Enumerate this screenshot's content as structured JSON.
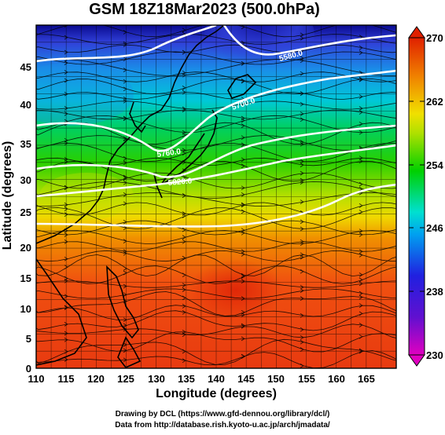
{
  "title": "GSM 18Z18Mar2023 (500.0hPa)",
  "map": {
    "xlabel": "Longitude (degrees)",
    "ylabel": "Latitude  (degrees)",
    "x_ticks": [
      "110",
      "115",
      "120",
      "125",
      "130",
      "135",
      "140",
      "145",
      "150",
      "155",
      "160",
      "165"
    ],
    "y_ticks": [
      "0",
      "5",
      "10",
      "15",
      "20",
      "25",
      "30",
      "35",
      "40",
      "45"
    ],
    "lon_range": [
      110,
      170
    ],
    "lat_range": [
      0,
      50
    ],
    "contour_labels": [
      "5580.0",
      "5700.0",
      "5760.0",
      "5820.0"
    ]
  },
  "colorbar": {
    "ticks": [
      "230",
      "238",
      "246",
      "254",
      "262",
      "270"
    ],
    "range": [
      230,
      270
    ],
    "colors": [
      "#e000c0",
      "#2020e0",
      "#00a0f0",
      "#00e0d0",
      "#00d000",
      "#b0e000",
      "#f0e000",
      "#f08000",
      "#e02000"
    ]
  },
  "credits": {
    "line1": "Drawing by DCL (https://www.gfd-dennou.org/library/dcl/)",
    "line2": "Data from http://database.rish.kyoto-u.ac.jp/arch/jmadata/"
  }
}
